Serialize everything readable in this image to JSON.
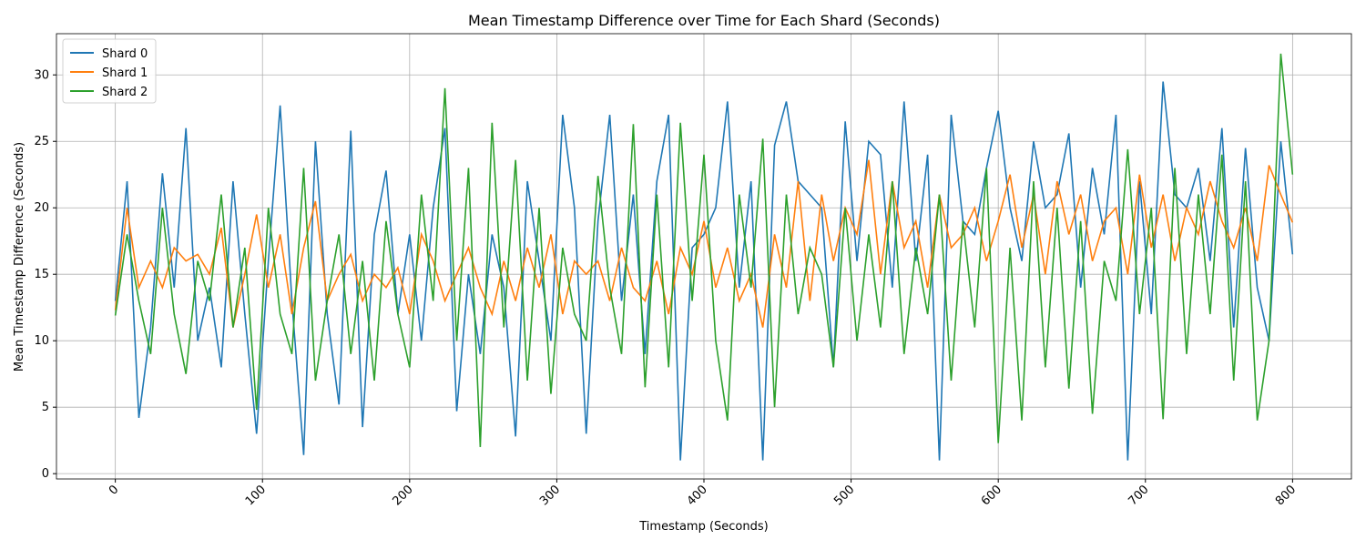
{
  "chart_data": {
    "type": "line",
    "title": "Mean Timestamp Difference over Time for Each Shard (Seconds)",
    "x_label": "Timestamp (Seconds)",
    "y_label": "Mean Timestamp Difference (Seconds)",
    "x": [
      0,
      8,
      16,
      24,
      32,
      40,
      48,
      56,
      64,
      72,
      80,
      88,
      96,
      104,
      112,
      120,
      128,
      136,
      144,
      152,
      160,
      168,
      176,
      184,
      192,
      200,
      208,
      216,
      224,
      232,
      240,
      248,
      256,
      264,
      272,
      280,
      288,
      296,
      304,
      312,
      320,
      328,
      336,
      344,
      352,
      360,
      368,
      376,
      384,
      392,
      400,
      408,
      416,
      424,
      432,
      440,
      448,
      456,
      464,
      472,
      480,
      488,
      496,
      504,
      512,
      520,
      528,
      536,
      544,
      552,
      560,
      568,
      576,
      584,
      592,
      600,
      608,
      616,
      624,
      632,
      640,
      648,
      656,
      664,
      672,
      680,
      688,
      696,
      704,
      712,
      720,
      728,
      736,
      744,
      752,
      760,
      768,
      776,
      784,
      792,
      800
    ],
    "series": [
      {
        "name": "Shard 0",
        "color": "#1f77b4",
        "values": [
          13,
          22,
          4.2,
          11,
          22.6,
          14,
          26,
          10,
          14,
          8,
          22,
          12,
          3,
          16,
          27.7,
          13,
          1.4,
          25,
          12,
          5.2,
          25.8,
          3.5,
          18,
          22.8,
          12,
          18,
          10,
          20,
          26,
          4.7,
          15,
          9,
          18,
          14,
          2.8,
          22,
          16,
          10,
          27,
          20,
          3,
          19,
          27,
          13,
          21,
          9,
          22,
          27,
          1,
          17,
          18,
          20,
          28,
          14,
          22,
          1,
          24.7,
          28,
          22,
          21,
          20,
          8,
          26.5,
          16,
          25,
          24,
          14,
          28,
          16,
          24,
          1,
          27,
          19,
          18,
          23,
          27.3,
          20,
          16,
          25,
          20,
          21,
          25.6,
          14,
          23,
          18,
          27,
          1,
          22,
          12,
          29.5,
          21,
          20,
          23,
          16,
          26,
          11,
          24.5,
          14,
          10,
          25,
          16.5
        ]
      },
      {
        "name": "Shard 1",
        "color": "#ff7f0e",
        "values": [
          12.3,
          20,
          14,
          16,
          14,
          17,
          16,
          16.5,
          15,
          18.5,
          11,
          15,
          19.5,
          14,
          18,
          12,
          17,
          20.5,
          13,
          15,
          16.5,
          13,
          15,
          14,
          15.5,
          12,
          18,
          16,
          13,
          15,
          17,
          14,
          12,
          16,
          13,
          17,
          14,
          18,
          12,
          16,
          15,
          16,
          13,
          17,
          14,
          13,
          16,
          12,
          17,
          15,
          19,
          14,
          17,
          13,
          15,
          11,
          18,
          14,
          22,
          13,
          21,
          16,
          20,
          18,
          23.6,
          15,
          22,
          17,
          19,
          14,
          21,
          17,
          18,
          20,
          16,
          19,
          22.5,
          17,
          21,
          15,
          22,
          18,
          21,
          16,
          19,
          20,
          15,
          22.5,
          17,
          21,
          16,
          20,
          18,
          22,
          19,
          17,
          20,
          16,
          23.2,
          21,
          18.9
        ]
      },
      {
        "name": "Shard 2",
        "color": "#2ca02c",
        "values": [
          11.9,
          18,
          13,
          9,
          20,
          12,
          7.5,
          16,
          13,
          21,
          11,
          17,
          4.8,
          20,
          12,
          9,
          23,
          7,
          13,
          18,
          9,
          16,
          7,
          19,
          12,
          8,
          21,
          13,
          29,
          10,
          23,
          2,
          26.4,
          11,
          23.6,
          7,
          20,
          6,
          17,
          12,
          10,
          22.4,
          14,
          9,
          26.3,
          6.5,
          21,
          8,
          26.4,
          13,
          24,
          10,
          4,
          21,
          14,
          25.2,
          5,
          21,
          12,
          17,
          15,
          8,
          20,
          10,
          18,
          11,
          22,
          9,
          17,
          12,
          21,
          7,
          19,
          11,
          23,
          2.3,
          17,
          4,
          22,
          8,
          20,
          6.4,
          19,
          4.5,
          16,
          13,
          24.4,
          12,
          20,
          4.1,
          23,
          9,
          21,
          12,
          24,
          7,
          22,
          4,
          10,
          31.6,
          22.5
        ]
      }
    ],
    "xlim": [
      -40,
      840
    ],
    "ylim": [
      -0.4,
      33.1
    ],
    "xticks": [
      0,
      100,
      200,
      300,
      400,
      500,
      600,
      700,
      800
    ],
    "yticks": [
      0,
      5,
      10,
      15,
      20,
      25,
      30
    ],
    "grid": true,
    "legend": "upper left"
  }
}
